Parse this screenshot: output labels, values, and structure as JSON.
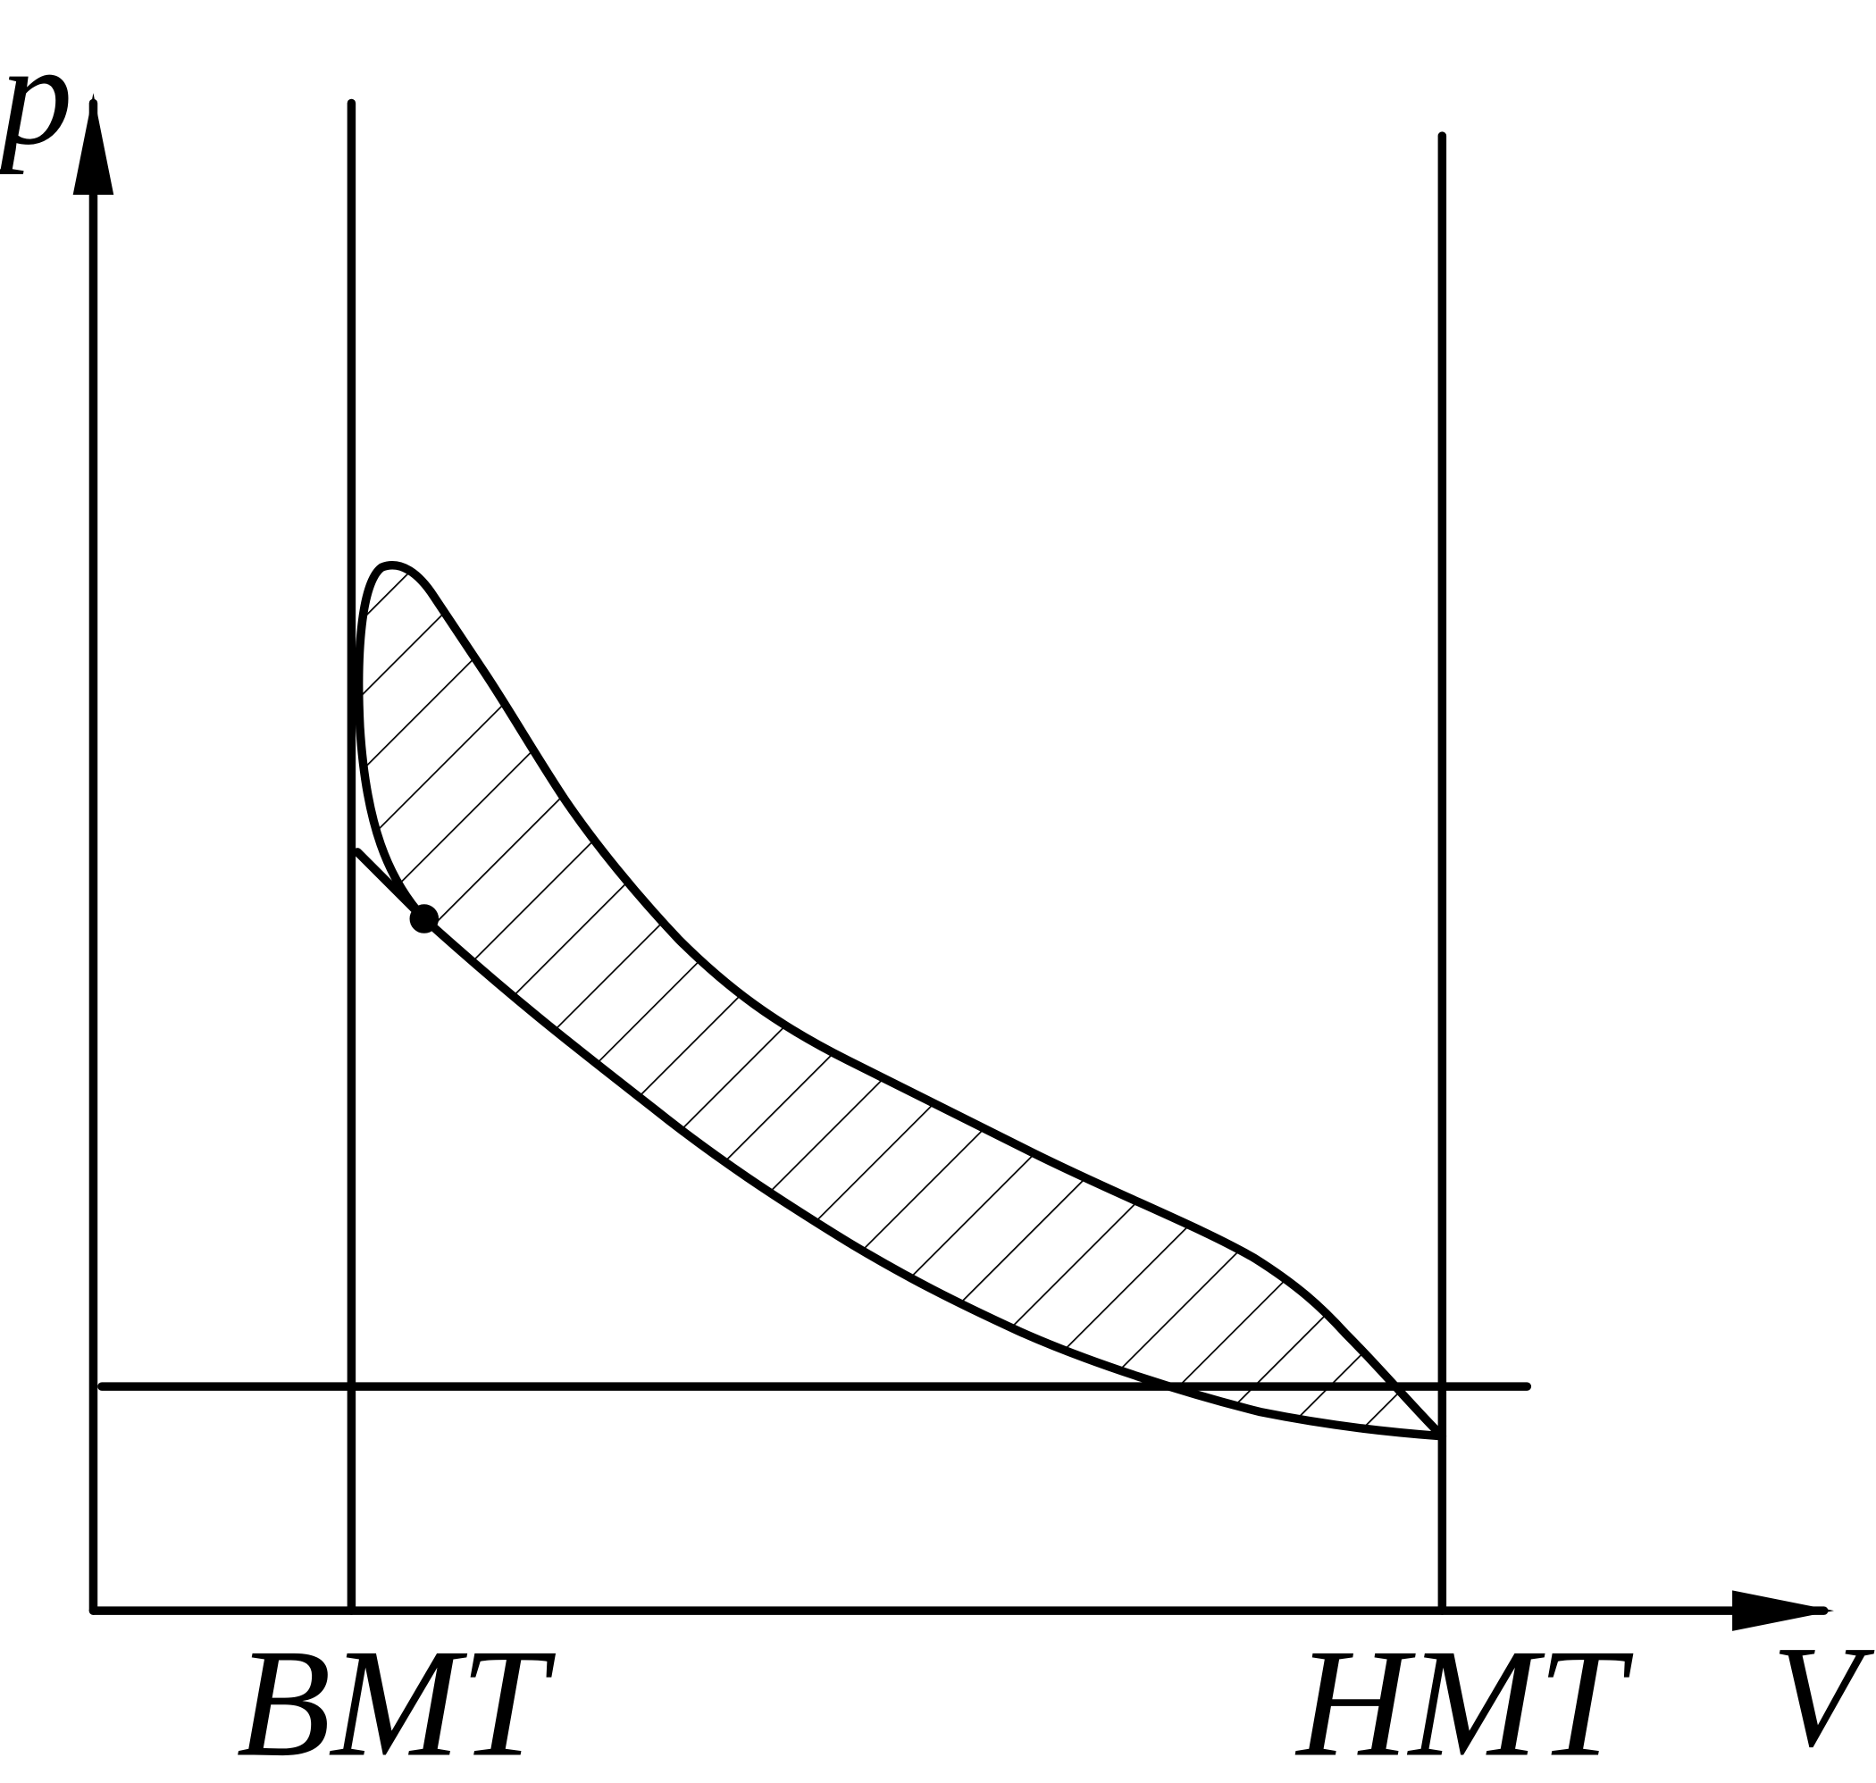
{
  "axes": {
    "y_label": "p",
    "x_label": "V"
  },
  "markers": {
    "left": "BMT",
    "right": "HMT"
  }
}
